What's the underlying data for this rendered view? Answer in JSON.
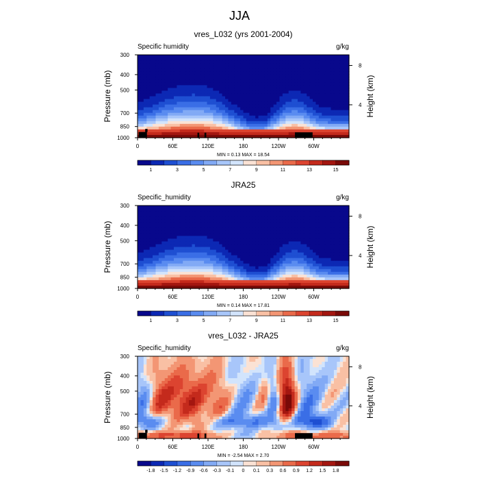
{
  "figure": {
    "title": "JJA"
  },
  "chart_data": [
    {
      "type": "heatmap",
      "title": "vres_L032 (yrs 2001-2004)",
      "left_label": "Specific humidity",
      "units": "g/kg",
      "ylabel": "Pressure (mb)",
      "ylabel_right": "Height (km)",
      "y_ticks": [
        "300",
        "400",
        "500",
        "700",
        "850",
        "1000"
      ],
      "y_right_ticks": [
        "8",
        "4"
      ],
      "x_ticks": [
        "0",
        "60E",
        "120E",
        "180",
        "120W",
        "60W"
      ],
      "stats": "MIN =   0.13  MAX =  18.54",
      "colorbar_labels": [
        "1",
        "3",
        "5",
        "7",
        "9",
        "11",
        "13",
        "15"
      ],
      "colorbar_levels": 16,
      "mode": "humidity",
      "value_range": [
        0.13,
        18.54
      ],
      "mask": true
    },
    {
      "type": "heatmap",
      "title": "JRA25",
      "left_label": "Specific_humidity",
      "units": "g/kg",
      "ylabel": "Pressure (mb)",
      "ylabel_right": "Height (km)",
      "y_ticks": [
        "300",
        "400",
        "500",
        "700",
        "850",
        "1000"
      ],
      "y_right_ticks": [
        "8",
        "4"
      ],
      "x_ticks": [
        "0",
        "60E",
        "120E",
        "180",
        "120W",
        "60W"
      ],
      "stats": "MIN =   0.14  MAX =  17.81",
      "colorbar_labels": [
        "1",
        "3",
        "5",
        "7",
        "9",
        "11",
        "13",
        "15"
      ],
      "colorbar_levels": 16,
      "mode": "humidity",
      "value_range": [
        0.14,
        17.81
      ],
      "mask": false
    },
    {
      "type": "heatmap",
      "title": "vres_L032 - JRA25",
      "left_label": "Specific_humidity",
      "units": "g/kg",
      "ylabel": "Pressure (mb)",
      "ylabel_right": "Height (km)",
      "y_ticks": [
        "300",
        "400",
        "500",
        "700",
        "850",
        "1000"
      ],
      "y_right_ticks": [
        "8",
        "4"
      ],
      "x_ticks": [
        "0",
        "60E",
        "120E",
        "180",
        "120W",
        "60W"
      ],
      "stats": "MIN =  -2.54  MAX =   2.70",
      "colorbar_labels": [
        "-1.8",
        "-1.5",
        "-1.2",
        "-0.9",
        "-0.6",
        "-0.3",
        "-0.1",
        "0",
        "0.1",
        "0.3",
        "0.6",
        "0.9",
        "1.2",
        "1.5",
        "1.8"
      ],
      "colorbar_levels": 16,
      "mode": "diff",
      "value_range": [
        -2.54,
        2.7
      ],
      "mask": true
    }
  ],
  "colors": {
    "blue_red_ramp": [
      "#08088c",
      "#0c28b4",
      "#1e4fd2",
      "#3a6ee6",
      "#5a8cf0",
      "#82aaf5",
      "#a8c6fa",
      "#d2e4fc",
      "#fbe2d4",
      "#f9c0a4",
      "#f39674",
      "#ea6a4a",
      "#dc4430",
      "#c42a1c",
      "#a41610",
      "#7a0a08"
    ],
    "mask": "#000000"
  }
}
